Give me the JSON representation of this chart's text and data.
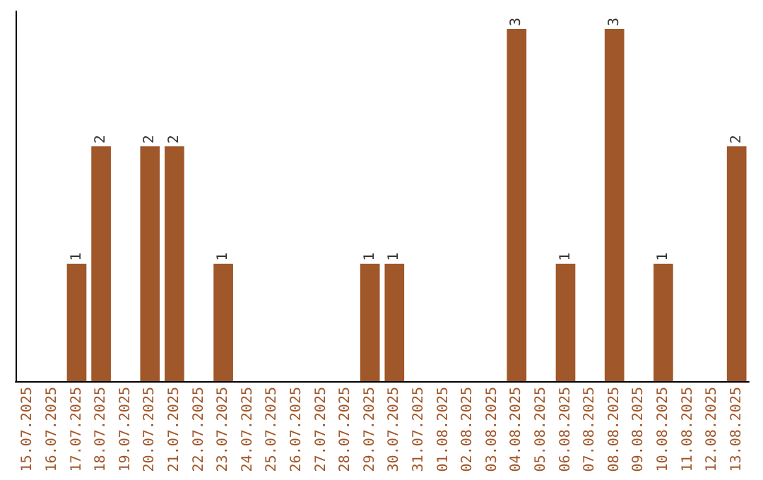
{
  "chart_data": {
    "type": "bar",
    "categories": [
      "15.07.2025",
      "16.07.2025",
      "17.07.2025",
      "18.07.2025",
      "19.07.2025",
      "20.07.2025",
      "21.07.2025",
      "22.07.2025",
      "23.07.2025",
      "24.07.2025",
      "25.07.2025",
      "26.07.2025",
      "27.07.2025",
      "28.07.2025",
      "29.07.2025",
      "30.07.2025",
      "31.07.2025",
      "01.08.2025",
      "02.08.2025",
      "03.08.2025",
      "04.08.2025",
      "05.08.2025",
      "06.08.2025",
      "07.08.2025",
      "08.08.2025",
      "09.08.2025",
      "10.08.2025",
      "11.08.2025",
      "12.08.2025",
      "13.08.2025"
    ],
    "values": [
      0,
      0,
      1,
      2,
      0,
      2,
      2,
      0,
      1,
      0,
      0,
      0,
      0,
      0,
      1,
      1,
      0,
      0,
      0,
      0,
      3,
      0,
      1,
      0,
      3,
      0,
      1,
      0,
      0,
      2
    ],
    "value_labels": [
      null,
      null,
      "1",
      "2",
      null,
      "2",
      "2",
      null,
      "1",
      null,
      null,
      null,
      null,
      null,
      "1",
      "1",
      null,
      null,
      null,
      null,
      "3",
      null,
      "1",
      null,
      "3",
      null,
      "1",
      null,
      null,
      "2"
    ],
    "color": "#a0572a",
    "ylim": [
      0,
      3
    ],
    "tick_labels": "x"
  }
}
